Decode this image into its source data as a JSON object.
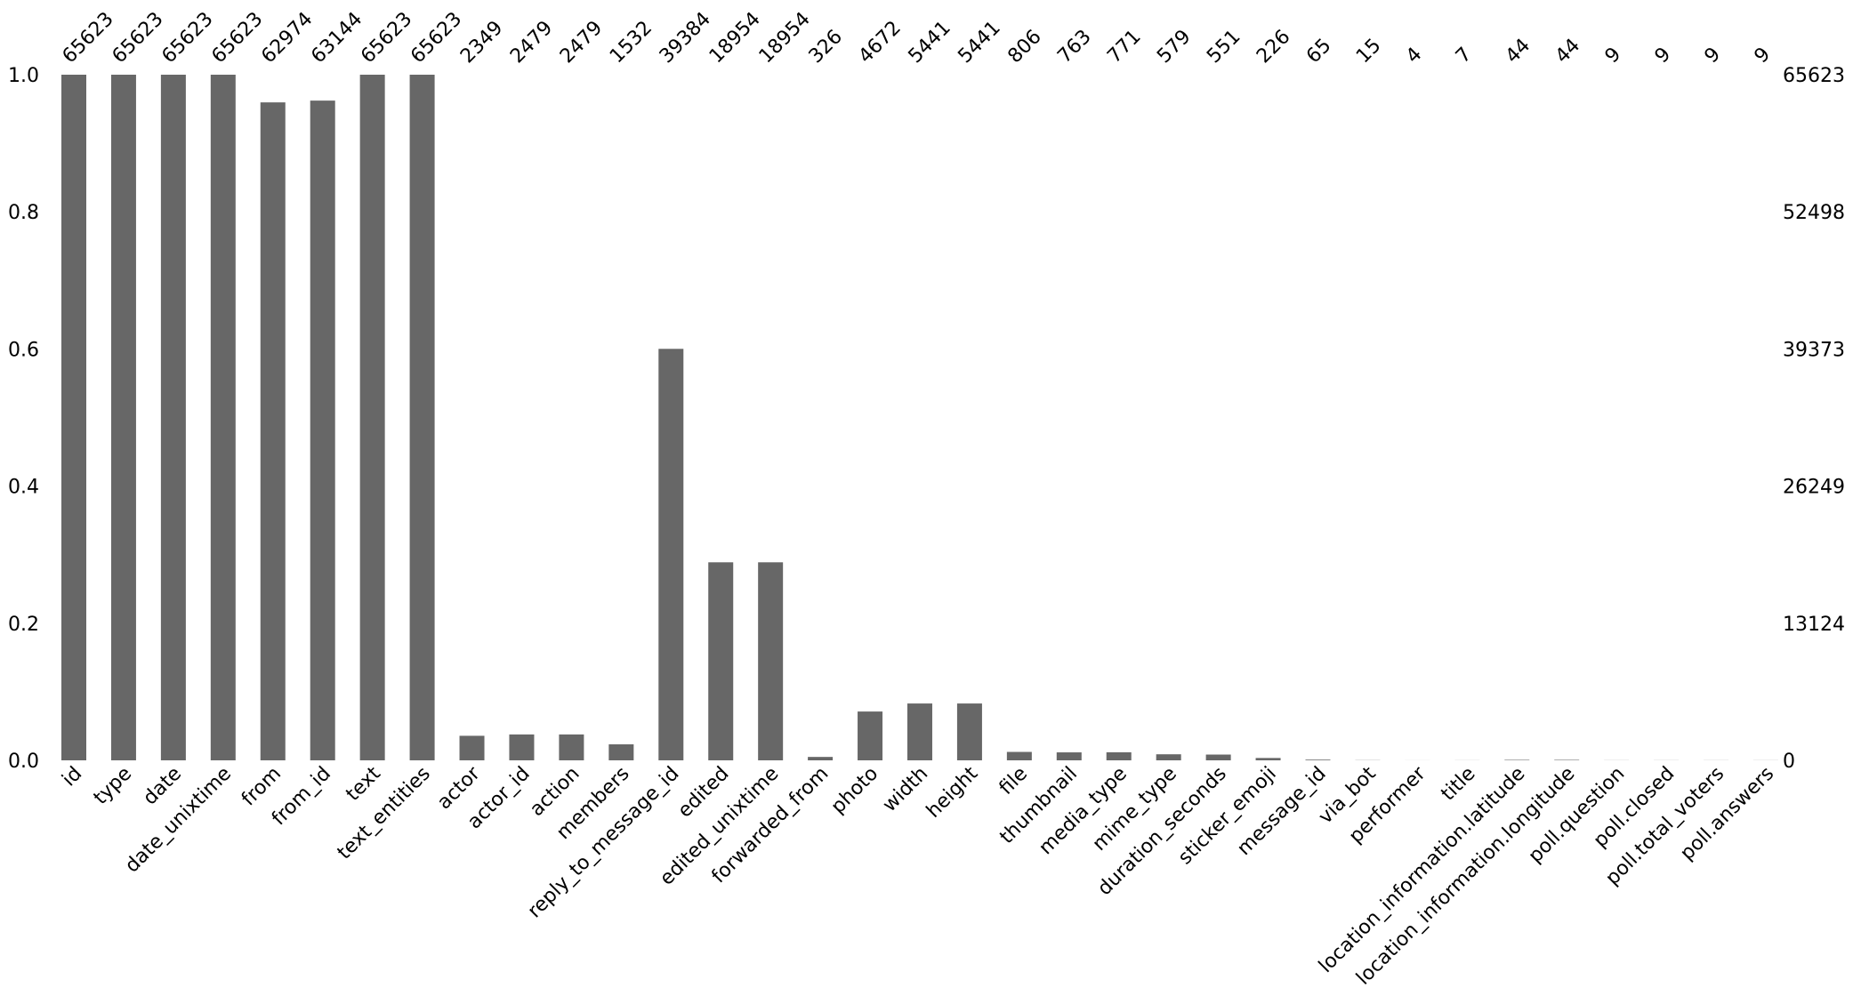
{
  "chart_data": {
    "type": "bar",
    "bar_color": "#676767",
    "categories": [
      "id",
      "type",
      "date",
      "date_unixtime",
      "from",
      "from_id",
      "text",
      "text_entities",
      "actor",
      "actor_id",
      "action",
      "members",
      "reply_to_message_id",
      "edited",
      "edited_unixtime",
      "forwarded_from",
      "photo",
      "width",
      "height",
      "file",
      "thumbnail",
      "media_type",
      "mime_type",
      "duration_seconds",
      "sticker_emoji",
      "message_id",
      "via_bot",
      "performer",
      "title",
      "location_information.latitude",
      "location_information.longitude",
      "poll.question",
      "poll.closed",
      "poll.total_voters",
      "poll.answers"
    ],
    "values": [
      65623,
      65623,
      65623,
      65623,
      62974,
      63144,
      65623,
      65623,
      2349,
      2479,
      2479,
      1532,
      39384,
      18954,
      18954,
      326,
      4672,
      5441,
      5441,
      806,
      763,
      771,
      579,
      551,
      226,
      65,
      15,
      4,
      7,
      44,
      44,
      9,
      9,
      9,
      9
    ],
    "total": 65623,
    "y_left_ticks": [
      "0.0",
      "0.2",
      "0.4",
      "0.6",
      "0.8",
      "1.0"
    ],
    "y_left_tick_values": [
      0.0,
      0.2,
      0.4,
      0.6,
      0.8,
      1.0
    ],
    "y_right_ticks": [
      "0",
      "13124",
      "26249",
      "39373",
      "52498",
      "65623"
    ],
    "ylim": [
      0,
      1.0
    ],
    "grid": false,
    "title": "",
    "xlabel": "",
    "ylabel": ""
  }
}
